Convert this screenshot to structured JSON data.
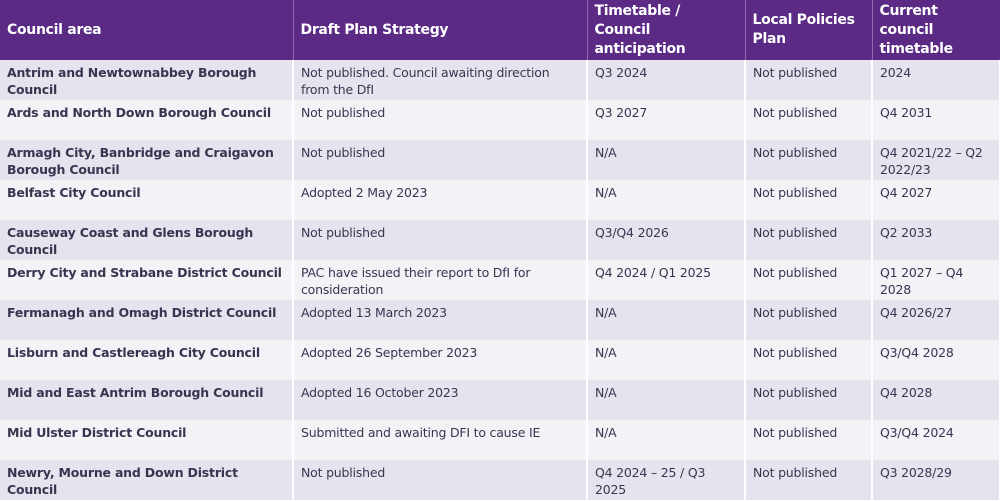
{
  "table": {
    "header": [
      "Council area",
      "Draft Plan Strategy",
      "Timetable / Council anticipation",
      "Local Policies Plan",
      "Current council timetable"
    ],
    "rows": [
      [
        "Antrim and Newtownabbey Borough Council",
        "Not published. Council awaiting direction from the DfI",
        "Q3 2024",
        "Not published",
        "2024"
      ],
      [
        "Ards and North Down Borough Council",
        "Not published",
        "Q3 2027",
        "Not published",
        "Q4 2031"
      ],
      [
        "Armagh City, Banbridge and Craigavon Borough Council",
        "Not published",
        "N/A",
        "Not published",
        "Q4 2021/22 – Q2 2022/23"
      ],
      [
        "Belfast City Council",
        "Adopted 2 May 2023",
        "N/A",
        "Not published",
        "Q4 2027"
      ],
      [
        "Causeway Coast and Glens Borough Council",
        "Not published",
        "Q3/Q4 2026",
        "Not published",
        "Q2 2033"
      ],
      [
        "Derry City and Strabane District Council",
        "PAC have issued their report to DfI for consideration",
        "Q4 2024 / Q1 2025",
        "Not published",
        "Q1 2027 – Q4 2028"
      ],
      [
        "Fermanagh and Omagh District Council",
        "Adopted 13 March 2023",
        "N/A",
        "Not published",
        "Q4 2026/27"
      ],
      [
        "Lisburn and Castlereagh City Council",
        "Adopted 26 September 2023",
        "N/A",
        "Not published",
        "Q3/Q4 2028"
      ],
      [
        "Mid and East Antrim Borough Council",
        "Adopted 16 October 2023",
        "N/A",
        "Not published",
        "Q4 2028"
      ],
      [
        "Mid Ulster District Council",
        "Submitted and awaiting DFI to cause IE",
        "N/A",
        "Not published",
        "Q3/Q4 2024"
      ],
      [
        "Newry, Mourne and Down District Council",
        "Not published",
        "Q4 2024 – 25 / Q3 2025",
        "Not published",
        "Q3 2028/29"
      ]
    ]
  }
}
